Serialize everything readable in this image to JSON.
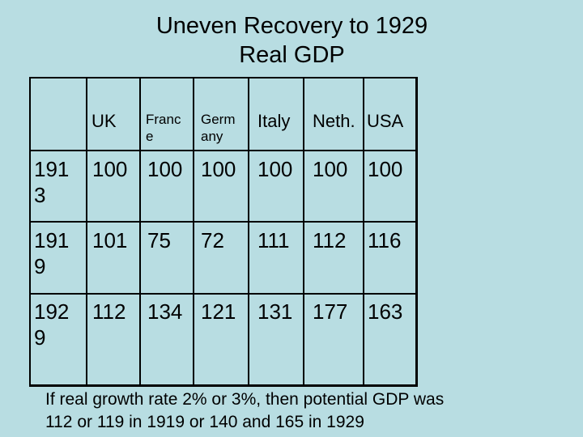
{
  "title": {
    "line1": "Uneven Recovery to 1929",
    "line2": "Real GDP"
  },
  "table": {
    "headers": [
      "UK",
      "Franc e",
      "Germ any",
      "Italy",
      "Neth.",
      "USA"
    ],
    "rows": [
      {
        "year": "191 3",
        "values": [
          "100",
          "100",
          "100",
          "100",
          "100",
          "100"
        ]
      },
      {
        "year": "191 9",
        "values": [
          "101",
          "75",
          "72",
          "111",
          "112",
          "116"
        ]
      },
      {
        "year": "192 9",
        "values": [
          "112",
          "134",
          "121",
          "131",
          "177",
          "163"
        ]
      }
    ]
  },
  "note": {
    "line1": "If real growth rate 2% or 3%, then potential GDP was",
    "line2": "112 or 119 in 1919 or 140 and 165 in 1929"
  }
}
